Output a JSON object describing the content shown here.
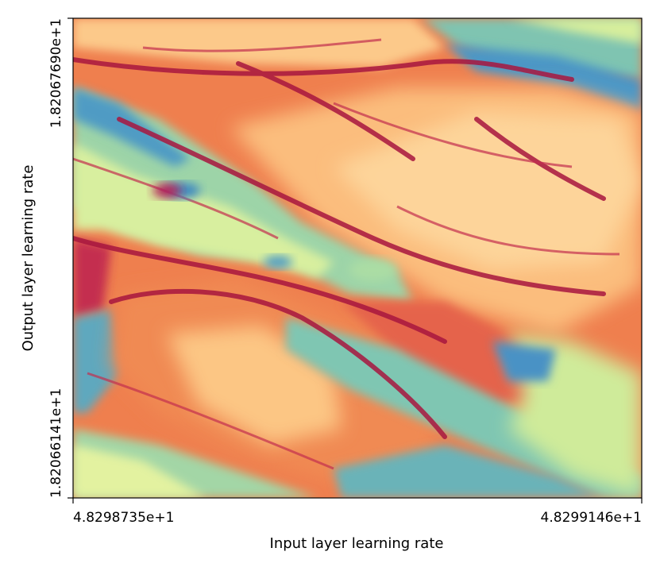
{
  "chart_data": {
    "type": "heatmap",
    "title": "",
    "xlabel": "Input layer learning rate",
    "ylabel": "Output layer learning rate",
    "x_ticks": [
      "4.8298735e+1",
      "4.8299146e+1"
    ],
    "y_ticks": [
      "1.82066141e+1",
      "1.82067690e+1"
    ],
    "xlim": [
      48.298735,
      48.299146
    ],
    "ylim": [
      18.2066141,
      18.206769
    ],
    "colormap": "Spectral",
    "colormap_stops": [
      "#9e0142",
      "#d53e4f",
      "#f46d43",
      "#fdae61",
      "#fee08b",
      "#e6f598",
      "#abdda4",
      "#66c2a5",
      "#3288bd"
    ],
    "grid": false,
    "colorbar": false,
    "pattern_description": "fractal trainability boundary: warm (orange/yellow) regions with dark-red filament boundaries, cool (green/blue) diagonal bands"
  }
}
